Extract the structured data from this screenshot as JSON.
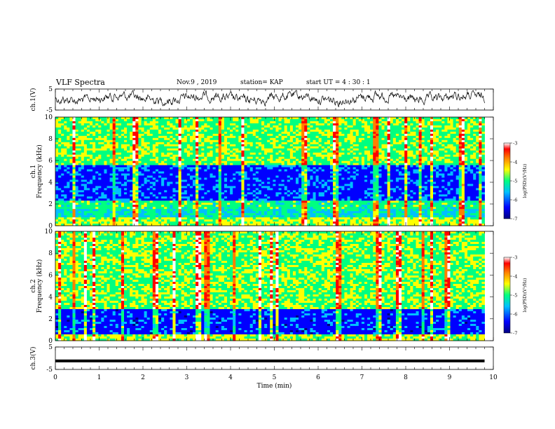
{
  "header": {
    "title": "VLF Spectra",
    "date": "Nov.9  , 2019",
    "station": "station= KAP",
    "start": "start  UT  =   4 : 30 : 1"
  },
  "chart_data": [
    {
      "type": "line",
      "name": "ch1-waveform",
      "ylabel": "ch.1(V)",
      "ylim": [
        -5,
        5
      ],
      "yticks": [
        "5",
        "-5"
      ],
      "xlim": [
        0,
        10
      ]
    },
    {
      "type": "heatmap",
      "name": "ch1-spectrogram",
      "ylabel": "ch.1",
      "ylabel2": "Frequency (kHz)",
      "ylim": [
        0,
        10
      ],
      "yticks": [
        "10",
        "8",
        "6",
        "4",
        "2",
        "0"
      ],
      "xlim": [
        0,
        10
      ],
      "colorbar": {
        "label": "log(PSD)(V²/Hz)",
        "range": [
          -7,
          -3
        ],
        "ticks": [
          "-3",
          "-4",
          "-5",
          "-6",
          "-7"
        ]
      }
    },
    {
      "type": "heatmap",
      "name": "ch2-spectrogram",
      "ylabel": "ch.2",
      "ylabel2": "Frequency (kHz)",
      "ylim": [
        0,
        10
      ],
      "yticks": [
        "10",
        "8",
        "6",
        "4",
        "2",
        "0"
      ],
      "xlim": [
        0,
        10
      ],
      "colorbar": {
        "label": "log(PSD)(V²/Hz)",
        "range": [
          -7,
          -3
        ],
        "ticks": [
          "-3",
          "-4",
          "-5",
          "-6",
          "-7"
        ]
      }
    },
    {
      "type": "line",
      "name": "ch3-waveform",
      "ylabel": "ch.3(V)",
      "ylim": [
        -5,
        5
      ],
      "yticks": [
        "5",
        "-5"
      ],
      "xlim": [
        0,
        10
      ],
      "x": [
        0,
        9.8
      ],
      "y": [
        -1.2,
        -1.2
      ]
    }
  ],
  "xaxis": {
    "label": "Time  (min)",
    "ticks": [
      "0",
      "1",
      "2",
      "3",
      "4",
      "5",
      "6",
      "7",
      "8",
      "9",
      "10"
    ]
  },
  "colors": {
    "colormap": [
      "#000080",
      "#0000ff",
      "#00bfff",
      "#00ff80",
      "#ffff00",
      "#ff8000",
      "#ff0000",
      "#ffffff"
    ]
  }
}
